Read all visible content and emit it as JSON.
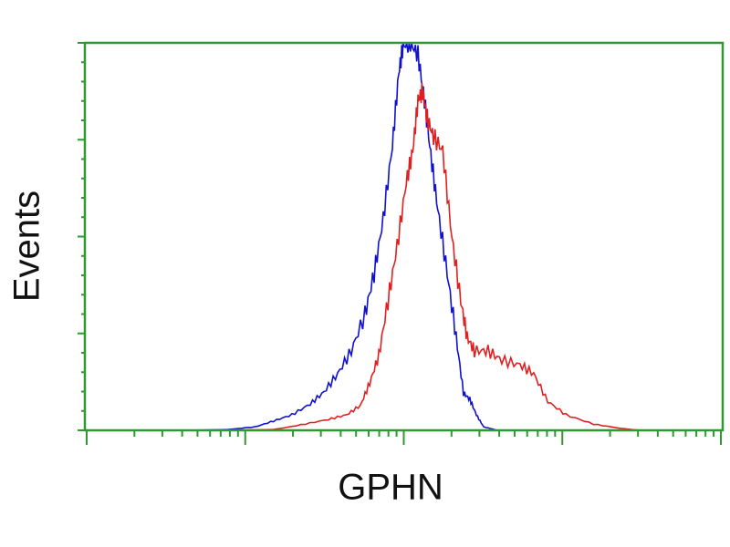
{
  "chart_data": {
    "type": "line",
    "title": "",
    "xlabel": "GPHN",
    "ylabel": "Events",
    "x_scale": "log",
    "xlim": [
      1,
      10000
    ],
    "ylim": [
      0,
      100
    ],
    "grid": false,
    "colors": {
      "axis": "#2e9a2e",
      "blue": "#1010d0",
      "red": "#e02020"
    },
    "series": [
      {
        "color": "#1010d0",
        "x": [
          4.6,
          7.8,
          11.6,
          15.1,
          19.7,
          25.7,
          31.4,
          38.3,
          46.7,
          56.9,
          65.0,
          74.2,
          84.7,
          93,
          99,
          110,
          123,
          135,
          148,
          164,
          188,
          214,
          238,
          261,
          287,
          319,
          389,
          618
        ],
        "y": [
          0,
          0.2,
          0.9,
          2.4,
          4,
          6.8,
          9.9,
          14.6,
          20.5,
          29.9,
          40.5,
          54.6,
          73.4,
          92.2,
          99.3,
          100,
          96.9,
          85.2,
          71.1,
          57,
          40.5,
          24,
          9.6,
          8,
          4,
          0.9,
          0,
          0
        ]
      },
      {
        "color": "#e02020",
        "x": [
          7.8,
          15.1,
          22.4,
          33.5,
          43.6,
          53.3,
          61.0,
          69.6,
          79.5,
          90.8,
          103.7,
          113.9,
          123,
          131.5,
          140.5,
          154,
          176,
          201,
          229,
          251,
          279,
          340,
          415,
          540,
          660,
          808,
          1054,
          1570,
          2342,
          3049
        ],
        "y": [
          0,
          0.2,
          1.4,
          2.8,
          4,
          6.4,
          12.2,
          19.3,
          33.4,
          47.5,
          64,
          72.2,
          85.2,
          87.5,
          80.5,
          75.8,
          72.2,
          49.9,
          33.4,
          24,
          20.5,
          20.5,
          18.1,
          16.9,
          14.6,
          7.5,
          4,
          1.6,
          0.5,
          0
        ]
      }
    ]
  }
}
